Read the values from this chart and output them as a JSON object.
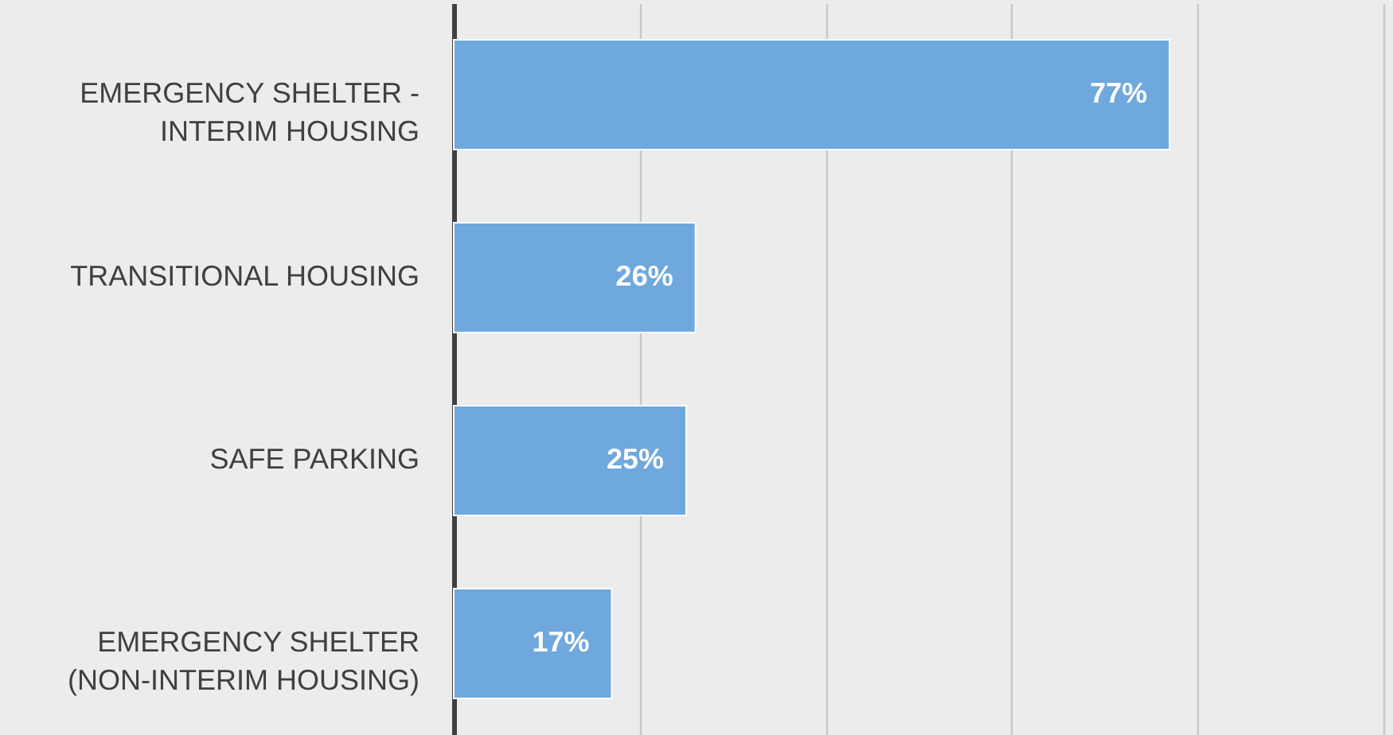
{
  "chart_data": {
    "type": "bar",
    "orientation": "horizontal",
    "categories": [
      "EMERGENCY SHELTER -\nINTERIM HOUSING",
      "TRANSITIONAL HOUSING",
      "SAFE PARKING",
      "EMERGENCY SHELTER\n(NON-INTERIM HOUSING)"
    ],
    "values": [
      77,
      26,
      25,
      17
    ],
    "color": "#6fa8dc",
    "value_labels": [
      "77%",
      "26%",
      "25%",
      "17%"
    ],
    "xlim": [
      0,
      100
    ],
    "xticks": [
      {
        "value": 0,
        "label": null
      },
      {
        "value": 20,
        "label": null
      },
      {
        "value": 40,
        "label": null
      },
      {
        "value": 60,
        "label": null
      },
      {
        "value": 80,
        "label": null
      },
      {
        "value": 100,
        "label": null
      }
    ],
    "grid": "x",
    "tick_labels": "y"
  }
}
